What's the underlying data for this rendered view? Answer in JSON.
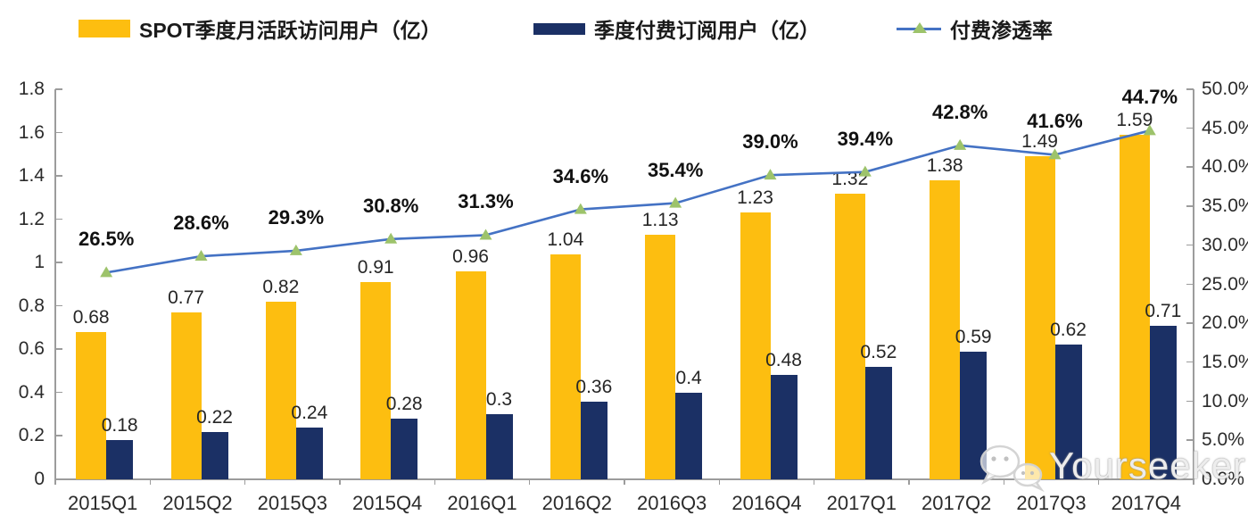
{
  "chart_data": {
    "type": "combo-bar-line",
    "title": "",
    "categories": [
      "2015Q1",
      "2015Q2",
      "2015Q3",
      "2015Q4",
      "2016Q1",
      "2016Q2",
      "2016Q3",
      "2016Q4",
      "2017Q1",
      "2017Q2",
      "2017Q3",
      "2017Q4"
    ],
    "series": [
      {
        "name": "SPOT季度月活跃访问用户（亿）",
        "type": "bar",
        "axis": "left",
        "color": "#FDBE10",
        "values": [
          0.68,
          0.77,
          0.82,
          0.91,
          0.96,
          1.04,
          1.13,
          1.23,
          1.32,
          1.38,
          1.49,
          1.59
        ]
      },
      {
        "name": "季度付费订阅用户（亿）",
        "type": "bar",
        "axis": "left",
        "color": "#1B3065",
        "values": [
          0.18,
          0.22,
          0.24,
          0.28,
          0.3,
          0.36,
          0.4,
          0.48,
          0.52,
          0.59,
          0.62,
          0.71
        ]
      },
      {
        "name": "付费渗透率",
        "type": "line",
        "axis": "right",
        "color": "#4472C4",
        "marker": "triangle",
        "marker_color": "#9DC36B",
        "values": [
          26.5,
          28.6,
          29.3,
          30.8,
          31.3,
          34.6,
          35.4,
          39.0,
          39.4,
          42.8,
          41.6,
          44.7
        ],
        "labels": [
          "26.5%",
          "28.6%",
          "29.3%",
          "30.8%",
          "31.3%",
          "34.6%",
          "35.4%",
          "39.0%",
          "39.4%",
          "42.8%",
          "41.6%",
          "44.7%"
        ]
      }
    ],
    "left_axis": {
      "min": 0,
      "max": 1.8,
      "step": 0.2,
      "ticks": [
        "0",
        "0.2",
        "0.4",
        "0.6",
        "0.8",
        "1",
        "1.2",
        "1.4",
        "1.6",
        "1.8"
      ]
    },
    "right_axis": {
      "min": 0,
      "max": 50,
      "step": 5,
      "ticks": [
        "0.0%",
        "5.0%",
        "10.0%",
        "15.0%",
        "20.0%",
        "25.0%",
        "30.0%",
        "35.0%",
        "40.0%",
        "45.0%",
        "50.0%"
      ]
    },
    "grid": false,
    "legend_position": "top"
  },
  "legend": {
    "items": [
      {
        "label": "SPOT季度月活跃访问用户（亿）",
        "swatch": "bar",
        "color": "#FDBE10"
      },
      {
        "label": "季度付费订阅用户（亿）",
        "swatch": "bar",
        "color": "#1B3065"
      },
      {
        "label": "付费渗透率",
        "swatch": "line-triangle",
        "line_color": "#4472C4",
        "marker_color": "#9DC36B"
      }
    ]
  },
  "watermark": {
    "icon": "wechat-icon",
    "text": "Yourseeker"
  },
  "colors": {
    "mau_bar": "#FDBE10",
    "paid_bar": "#1B3065",
    "penetration_line": "#4472C4",
    "penetration_marker": "#9DC36B",
    "axis": "#9C9C9C",
    "text": "#262626"
  }
}
